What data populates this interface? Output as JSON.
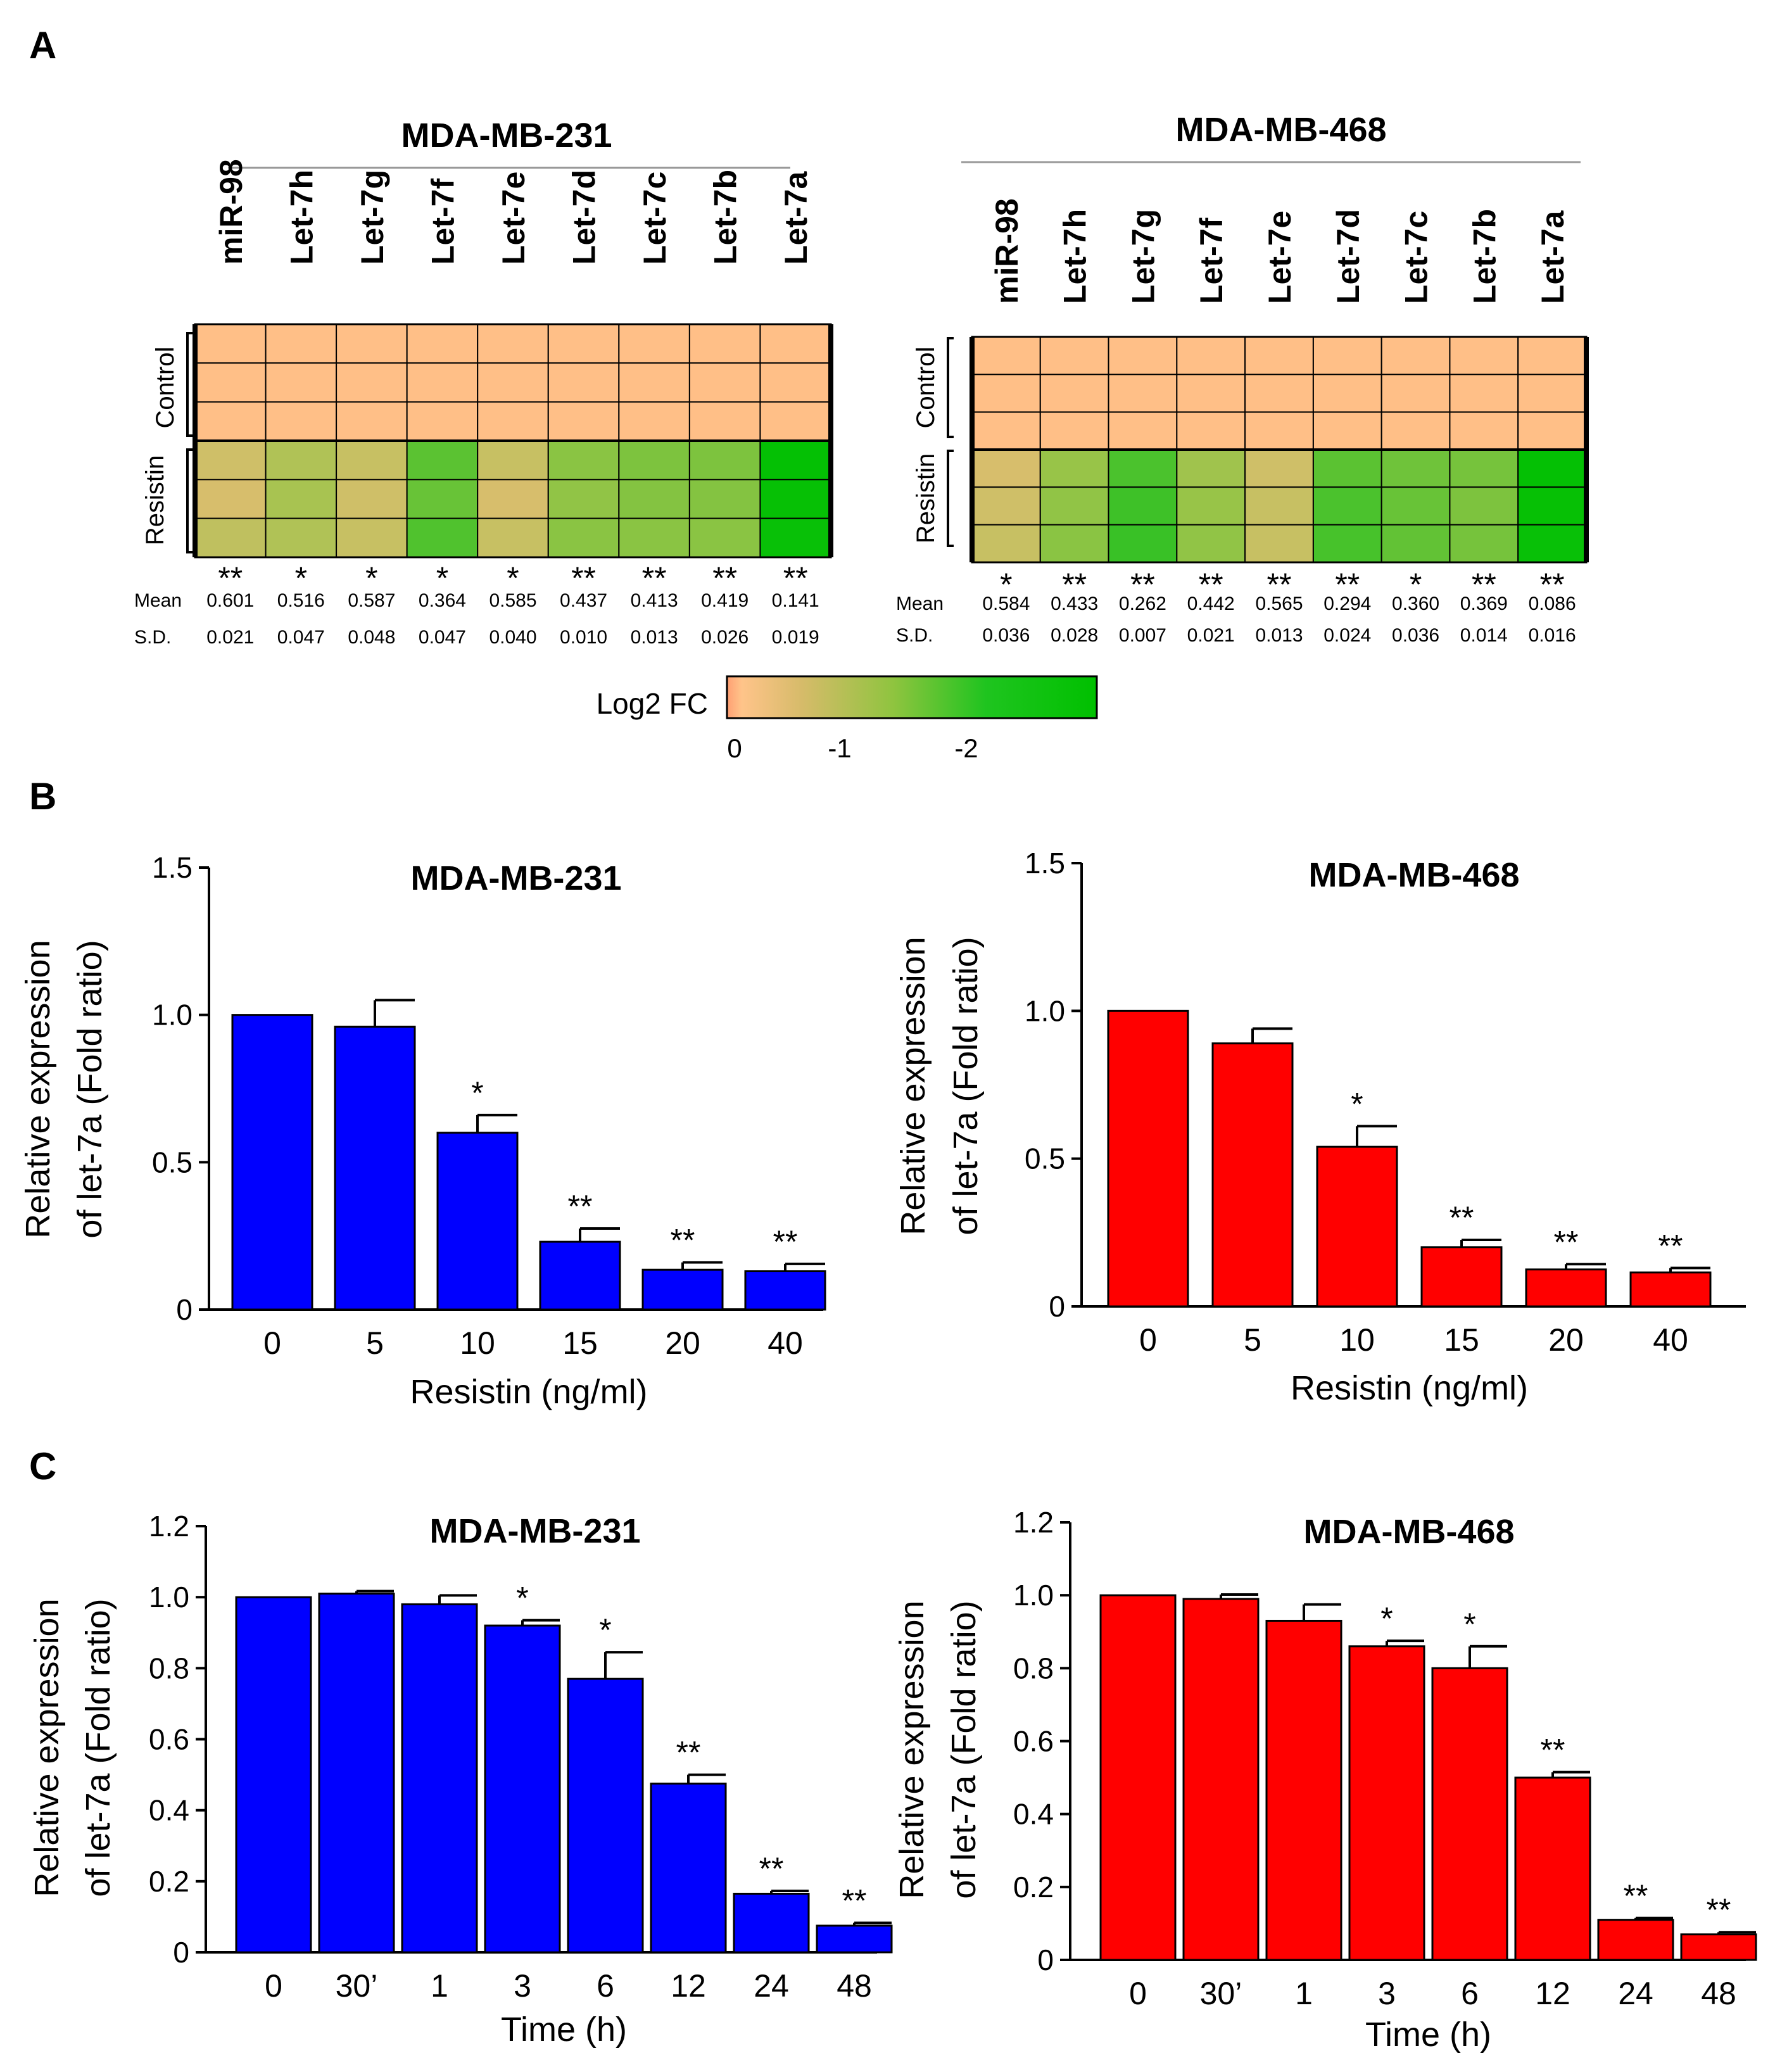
{
  "panel_labels": [
    "A",
    "B",
    "C"
  ],
  "heatmap_row_labels": [
    "Control",
    "Resistin"
  ],
  "stat_row_labels": [
    "Mean",
    "S.D."
  ],
  "legend": {
    "title": "Log2 FC",
    "ticks": [
      "0",
      "-1",
      "-2"
    ],
    "colors": [
      "#ff9f73",
      "#ffc48a",
      "#d7bb6a",
      "#8fc43f",
      "#1fc41f",
      "#00c000"
    ]
  },
  "colors": {
    "blue": "#0000ff",
    "red": "#ff0000",
    "cell_control": "#ffbf87"
  },
  "chart_data": [
    {
      "type": "heatmap",
      "title": "MDA-MB-231",
      "columns": [
        "miR-98",
        "Let-7h",
        "Let-7g",
        "Let-7f",
        "Let-7e",
        "Let-7d",
        "Let-7c",
        "Let-7b",
        "Let-7a"
      ],
      "control_rows": 3,
      "resistin_log2fc": [
        [
          -0.75,
          -0.95,
          -0.8,
          -1.55,
          -0.8,
          -1.2,
          -1.3,
          -1.3,
          -2.9
        ],
        [
          -0.7,
          -1.0,
          -0.75,
          -1.45,
          -0.7,
          -1.15,
          -1.25,
          -1.25,
          -2.85
        ],
        [
          -0.85,
          -0.95,
          -0.8,
          -1.65,
          -0.8,
          -1.2,
          -1.2,
          -1.2,
          -2.8
        ]
      ],
      "significance": [
        "**",
        "*",
        "*",
        "*",
        "*",
        "**",
        "**",
        "**",
        "**"
      ],
      "mean": [
        "0.601",
        "0.516",
        "0.587",
        "0.364",
        "0.585",
        "0.437",
        "0.413",
        "0.419",
        "0.141"
      ],
      "sd": [
        "0.021",
        "0.047",
        "0.048",
        "0.047",
        "0.040",
        "0.010",
        "0.013",
        "0.026",
        "0.019"
      ]
    },
    {
      "type": "heatmap",
      "title": "MDA-MB-468",
      "columns": [
        "miR-98",
        "Let-7h",
        "Let-7g",
        "Let-7f",
        "Let-7e",
        "Let-7d",
        "Let-7c",
        "Let-7b",
        "Let-7a"
      ],
      "control_rows": 3,
      "resistin_log2fc": [
        [
          -0.7,
          -1.1,
          -1.7,
          -1.05,
          -0.75,
          -1.55,
          -1.4,
          -1.35,
          -2.9
        ],
        [
          -0.75,
          -1.15,
          -1.85,
          -1.1,
          -0.8,
          -1.7,
          -1.45,
          -1.3,
          -2.85
        ],
        [
          -0.8,
          -1.2,
          -1.9,
          -1.15,
          -0.8,
          -1.75,
          -1.5,
          -1.35,
          -2.8
        ]
      ],
      "significance": [
        "*",
        "**",
        "**",
        "**",
        "**",
        "**",
        "*",
        "**",
        "**"
      ],
      "mean": [
        "0.584",
        "0.433",
        "0.262",
        "0.442",
        "0.565",
        "0.294",
        "0.360",
        "0.369",
        "0.086"
      ],
      "sd": [
        "0.036",
        "0.028",
        "0.007",
        "0.021",
        "0.013",
        "0.024",
        "0.036",
        "0.014",
        "0.016"
      ]
    },
    {
      "type": "bar",
      "title": "MDA-MB-231",
      "color": "blue",
      "ylabel_line1": "Relative expression",
      "ylabel_line2": "of let-7a  (Fold ratio)",
      "xlabel": "Resistin  (ng/ml)",
      "categories": [
        "0",
        "5",
        "10",
        "15",
        "20",
        "40"
      ],
      "values": [
        1.0,
        0.96,
        0.6,
        0.23,
        0.135,
        0.13
      ],
      "errors": [
        0.0,
        0.09,
        0.06,
        0.045,
        0.025,
        0.025
      ],
      "significance": [
        "",
        "",
        "*",
        "**",
        "**",
        "**"
      ],
      "ylim": [
        0,
        1.5
      ],
      "yticks": [
        "0",
        "0.5",
        "1.0",
        "1.5"
      ]
    },
    {
      "type": "bar",
      "title": "MDA-MB-468",
      "color": "red",
      "ylabel_line1": "Relative expression",
      "ylabel_line2": "of let-7a  (Fold ratio)",
      "xlabel": "Resistin  (ng/ml)",
      "categories": [
        "0",
        "5",
        "10",
        "15",
        "20",
        "40"
      ],
      "values": [
        1.0,
        0.89,
        0.54,
        0.2,
        0.125,
        0.115
      ],
      "errors": [
        0.0,
        0.05,
        0.07,
        0.025,
        0.018,
        0.015
      ],
      "significance": [
        "",
        "",
        "*",
        "**",
        "**",
        "**"
      ],
      "ylim": [
        0,
        1.5
      ],
      "yticks": [
        "0",
        "0.5",
        "1.0",
        "1.5"
      ]
    },
    {
      "type": "bar",
      "title": "MDA-MB-231",
      "color": "blue",
      "ylabel_line1": "Relative expression",
      "ylabel_line2": "of let-7a  (Fold ratio)",
      "xlabel": "Time (h)",
      "categories": [
        "0",
        "30’",
        "1",
        "3",
        "6",
        "12",
        "24",
        "48"
      ],
      "values": [
        1.0,
        1.01,
        0.98,
        0.92,
        0.77,
        0.475,
        0.165,
        0.075
      ],
      "errors": [
        0.0,
        0.007,
        0.025,
        0.015,
        0.075,
        0.025,
        0.008,
        0.008
      ],
      "significance": [
        "",
        "",
        "",
        "*",
        "*",
        "**",
        "**",
        "**"
      ],
      "ylim": [
        0,
        1.2
      ],
      "yticks": [
        "0",
        "0.2",
        "0.4",
        "0.6",
        "0.8",
        "1.0",
        "1.2"
      ]
    },
    {
      "type": "bar",
      "title": "MDA-MB-468",
      "color": "red",
      "ylabel_line1": "Relative expression",
      "ylabel_line2": "of let-7a  (Fold ratio)",
      "xlabel": "Time (h)",
      "categories": [
        "0",
        "30’",
        "1",
        "3",
        "6",
        "12",
        "24",
        "48"
      ],
      "values": [
        1.0,
        0.99,
        0.93,
        0.86,
        0.8,
        0.5,
        0.11,
        0.07
      ],
      "errors": [
        0.0,
        0.012,
        0.045,
        0.015,
        0.06,
        0.015,
        0.005,
        0.006
      ],
      "significance": [
        "",
        "",
        "",
        "*",
        "*",
        "**",
        "**",
        "**"
      ],
      "ylim": [
        0,
        1.2
      ],
      "yticks": [
        "0",
        "0.2",
        "0.4",
        "0.6",
        "0.8",
        "1.0",
        "1.2"
      ]
    }
  ]
}
